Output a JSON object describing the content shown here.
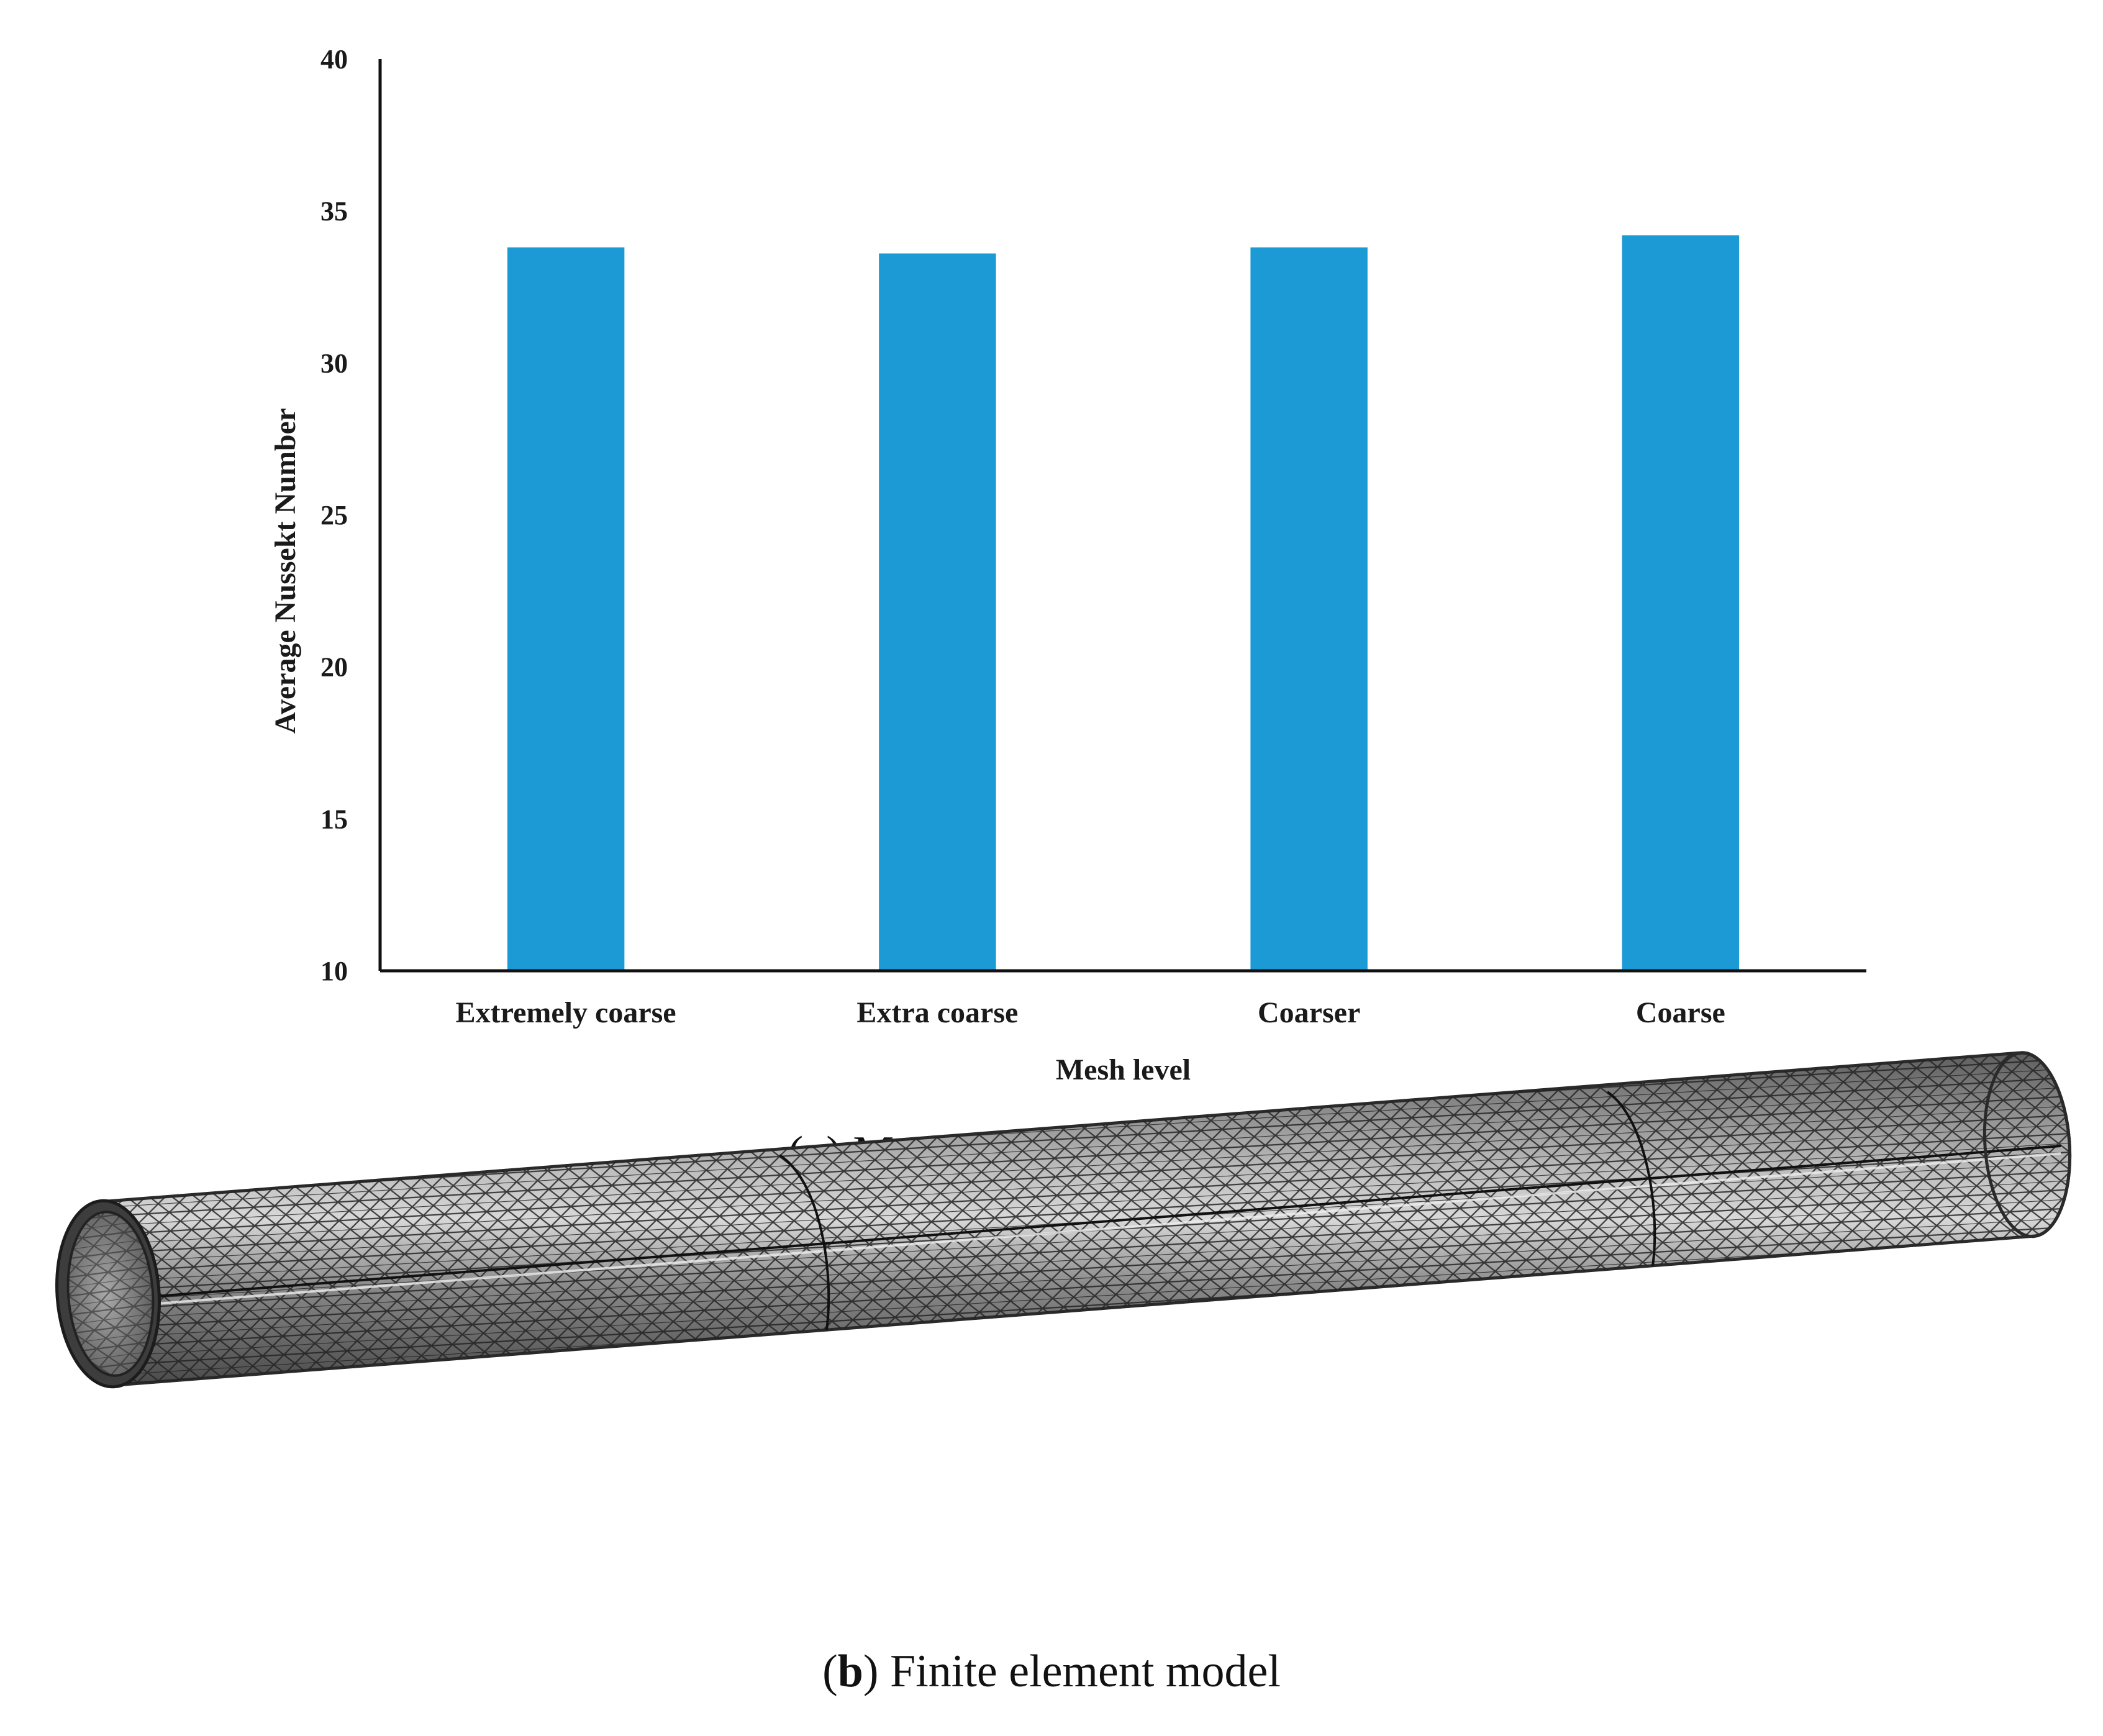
{
  "chart_data": {
    "type": "bar",
    "categories": [
      "Extremely coarse",
      "Extra coarse",
      "Coarser",
      "Coarse"
    ],
    "values": [
      33.8,
      33.6,
      33.8,
      34.2
    ],
    "title": "",
    "xlabel": "Mesh level",
    "ylabel": "Average Nussekt Number",
    "ylim": [
      10,
      40
    ],
    "yticks": [
      10,
      15,
      20,
      25,
      30,
      35,
      40
    ],
    "grid": false,
    "bar_color": "#1b9ad6"
  },
  "captions": {
    "a": {
      "letter": "a",
      "text": "Mesh sensitivity analysis"
    },
    "b": {
      "letter": "b",
      "text": "Finite element model"
    }
  },
  "mesh_image": {
    "icon": "meshed-cylinder-illustration",
    "color": "#707070"
  }
}
